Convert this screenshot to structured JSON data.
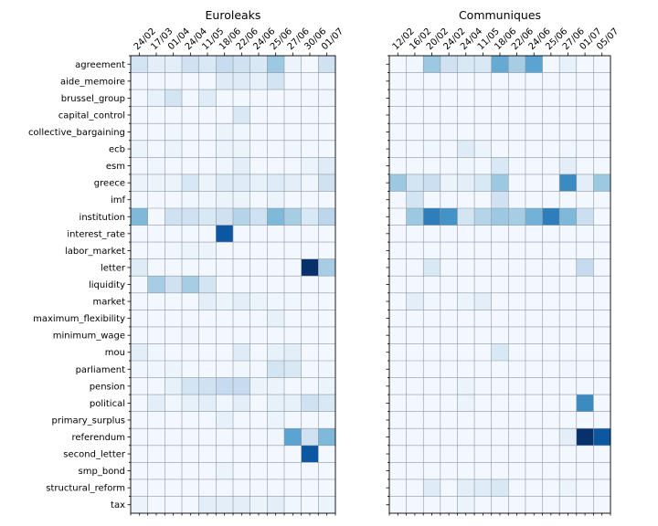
{
  "chart_data": [
    {
      "type": "heatmap",
      "title": "Euroleaks",
      "colormap": "Blues",
      "value_range": [
        0,
        1
      ],
      "x": [
        "24/02",
        "17/03",
        "01/04",
        "24/04",
        "11/05",
        "18/06",
        "22/06",
        "24/06",
        "25/06",
        "27/06",
        "30/06",
        "01/07"
      ],
      "y": [
        "agreement",
        "aide_memoire",
        "brussel_group",
        "capital_control",
        "collective_bargaining",
        "ecb",
        "esm",
        "greece",
        "imf",
        "institution",
        "interest_rate",
        "labor_market",
        "letter",
        "liquidity",
        "market",
        "maximum_flexibility",
        "minimum_wage",
        "mou",
        "parliament",
        "pension",
        "political",
        "primary_surplus",
        "referendum",
        "second_letter",
        "smp_bond",
        "structural_reform",
        "tax"
      ],
      "values": [
        [
          0.18,
          0.1,
          0.1,
          0.2,
          0.15,
          0.24,
          0.2,
          0.15,
          0.38,
          0.06,
          0.02,
          0.2
        ],
        [
          0.02,
          0.02,
          0.03,
          0.02,
          0.02,
          0.12,
          0.12,
          0.08,
          0.18,
          0.02,
          0.02,
          0.02
        ],
        [
          0.02,
          0.08,
          0.18,
          0.02,
          0.12,
          0.02,
          0.02,
          0.02,
          0.02,
          0.02,
          0.02,
          0.04
        ],
        [
          0.02,
          0.02,
          0.02,
          0.02,
          0.02,
          0.02,
          0.15,
          0.02,
          0.02,
          0.02,
          0.02,
          0.02
        ],
        [
          0.02,
          0.02,
          0.04,
          0.02,
          0.02,
          0.06,
          0.04,
          0.02,
          0.02,
          0.02,
          0.02,
          0.02
        ],
        [
          0.06,
          0.02,
          0.06,
          0.02,
          0.02,
          0.06,
          0.06,
          0.02,
          0.02,
          0.04,
          0.02,
          0.02
        ],
        [
          0.02,
          0.04,
          0.02,
          0.02,
          0.02,
          0.04,
          0.1,
          0.02,
          0.02,
          0.02,
          0.06,
          0.12
        ],
        [
          0.06,
          0.06,
          0.06,
          0.16,
          0.06,
          0.12,
          0.12,
          0.08,
          0.12,
          0.1,
          0.04,
          0.2
        ],
        [
          0.02,
          0.02,
          0.02,
          0.04,
          0.04,
          0.06,
          0.06,
          0.02,
          0.06,
          0.02,
          0.02,
          0.02
        ],
        [
          0.45,
          0.02,
          0.2,
          0.2,
          0.15,
          0.2,
          0.3,
          0.2,
          0.45,
          0.35,
          0.15,
          0.28
        ],
        [
          0.02,
          0.02,
          0.02,
          0.02,
          0.02,
          0.85,
          0.02,
          0.02,
          0.02,
          0.02,
          0.02,
          0.02
        ],
        [
          0.02,
          0.02,
          0.04,
          0.06,
          0.06,
          0.02,
          0.02,
          0.02,
          0.02,
          0.02,
          0.02,
          0.02
        ],
        [
          0.12,
          0.02,
          0.02,
          0.02,
          0.02,
          0.02,
          0.02,
          0.02,
          0.02,
          0.02,
          1.0,
          0.35
        ],
        [
          0.02,
          0.35,
          0.2,
          0.35,
          0.18,
          0.02,
          0.02,
          0.02,
          0.02,
          0.02,
          0.02,
          0.02
        ],
        [
          0.02,
          0.02,
          0.02,
          0.02,
          0.1,
          0.06,
          0.1,
          0.06,
          0.04,
          0.04,
          0.02,
          0.02
        ],
        [
          0.02,
          0.02,
          0.02,
          0.02,
          0.02,
          0.02,
          0.02,
          0.02,
          0.08,
          0.02,
          0.02,
          0.02
        ],
        [
          0.02,
          0.02,
          0.02,
          0.04,
          0.02,
          0.02,
          0.02,
          0.02,
          0.02,
          0.02,
          0.02,
          0.02
        ],
        [
          0.1,
          0.04,
          0.02,
          0.02,
          0.02,
          0.02,
          0.12,
          0.02,
          0.08,
          0.1,
          0.02,
          0.02
        ],
        [
          0.04,
          0.04,
          0.06,
          0.02,
          0.02,
          0.02,
          0.04,
          0.02,
          0.18,
          0.15,
          0.02,
          0.04
        ],
        [
          0.02,
          0.02,
          0.08,
          0.18,
          0.2,
          0.25,
          0.25,
          0.06,
          0.06,
          0.02,
          0.02,
          0.06
        ],
        [
          0.02,
          0.1,
          0.04,
          0.08,
          0.1,
          0.04,
          0.1,
          0.02,
          0.08,
          0.08,
          0.2,
          0.15
        ],
        [
          0.02,
          0.02,
          0.02,
          0.02,
          0.02,
          0.08,
          0.02,
          0.02,
          0.06,
          0.02,
          0.02,
          0.02
        ],
        [
          0.02,
          0.02,
          0.02,
          0.02,
          0.02,
          0.02,
          0.02,
          0.02,
          0.04,
          0.55,
          0.2,
          0.45
        ],
        [
          0.02,
          0.02,
          0.02,
          0.02,
          0.02,
          0.02,
          0.02,
          0.02,
          0.02,
          0.02,
          0.85,
          0.02
        ],
        [
          0.02,
          0.02,
          0.02,
          0.02,
          0.02,
          0.06,
          0.02,
          0.02,
          0.02,
          0.02,
          0.02,
          0.02
        ],
        [
          0.02,
          0.02,
          0.02,
          0.02,
          0.02,
          0.02,
          0.02,
          0.02,
          0.02,
          0.02,
          0.02,
          0.02
        ],
        [
          0.06,
          0.02,
          0.02,
          0.02,
          0.1,
          0.1,
          0.1,
          0.06,
          0.1,
          0.04,
          0.02,
          0.06
        ]
      ],
      "grid": true
    },
    {
      "type": "heatmap",
      "title": "Communiques",
      "colormap": "Blues",
      "value_range": [
        0,
        1
      ],
      "x": [
        "12/02",
        "16/02",
        "20/02",
        "24/02",
        "24/04",
        "11/05",
        "18/06",
        "22/06",
        "24/06",
        "25/06",
        "27/06",
        "01/07",
        "05/07"
      ],
      "y": [
        "agreement",
        "aide_memoire",
        "brussel_group",
        "capital_control",
        "collective_bargaining",
        "ecb",
        "esm",
        "greece",
        "imf",
        "institution",
        "interest_rate",
        "labor_market",
        "letter",
        "liquidity",
        "market",
        "maximum_flexibility",
        "minimum_wage",
        "mou",
        "parliament",
        "pension",
        "political",
        "primary_surplus",
        "referendum",
        "second_letter",
        "smp_bond",
        "structural_reform",
        "tax"
      ],
      "values": [
        [
          0.02,
          0.04,
          0.38,
          0.2,
          0.15,
          0.15,
          0.52,
          0.35,
          0.55,
          0.02,
          0.08,
          0.02,
          0.02
        ],
        [
          0.02,
          0.02,
          0.02,
          0.02,
          0.02,
          0.02,
          0.02,
          0.02,
          0.02,
          0.02,
          0.02,
          0.02,
          0.02
        ],
        [
          0.02,
          0.02,
          0.02,
          0.02,
          0.02,
          0.02,
          0.02,
          0.02,
          0.02,
          0.02,
          0.02,
          0.02,
          0.02
        ],
        [
          0.02,
          0.02,
          0.02,
          0.02,
          0.02,
          0.02,
          0.02,
          0.02,
          0.02,
          0.02,
          0.02,
          0.02,
          0.02
        ],
        [
          0.02,
          0.02,
          0.02,
          0.02,
          0.02,
          0.02,
          0.02,
          0.02,
          0.02,
          0.02,
          0.02,
          0.02,
          0.02
        ],
        [
          0.02,
          0.02,
          0.04,
          0.02,
          0.12,
          0.06,
          0.02,
          0.02,
          0.02,
          0.02,
          0.04,
          0.02,
          0.02
        ],
        [
          0.02,
          0.02,
          0.02,
          0.02,
          0.04,
          0.02,
          0.15,
          0.02,
          0.02,
          0.02,
          0.1,
          0.02,
          0.02
        ],
        [
          0.38,
          0.18,
          0.22,
          0.06,
          0.1,
          0.15,
          0.38,
          0.02,
          0.02,
          0.02,
          0.65,
          0.1,
          0.38
        ],
        [
          0.02,
          0.18,
          0.02,
          0.02,
          0.02,
          0.02,
          0.2,
          0.02,
          0.02,
          0.02,
          0.02,
          0.02,
          0.02
        ],
        [
          0.02,
          0.38,
          0.7,
          0.62,
          0.18,
          0.3,
          0.38,
          0.35,
          0.48,
          0.7,
          0.45,
          0.22,
          0.02
        ],
        [
          0.02,
          0.02,
          0.02,
          0.02,
          0.02,
          0.02,
          0.02,
          0.02,
          0.02,
          0.02,
          0.02,
          0.02,
          0.02
        ],
        [
          0.02,
          0.02,
          0.02,
          0.02,
          0.02,
          0.02,
          0.02,
          0.02,
          0.02,
          0.02,
          0.02,
          0.02,
          0.02
        ],
        [
          0.02,
          0.02,
          0.15,
          0.02,
          0.02,
          0.02,
          0.02,
          0.02,
          0.02,
          0.02,
          0.02,
          0.25,
          0.02
        ],
        [
          0.02,
          0.02,
          0.02,
          0.02,
          0.02,
          0.02,
          0.02,
          0.02,
          0.02,
          0.02,
          0.02,
          0.02,
          0.02
        ],
        [
          0.02,
          0.1,
          0.04,
          0.02,
          0.06,
          0.1,
          0.02,
          0.02,
          0.02,
          0.02,
          0.02,
          0.02,
          0.02
        ],
        [
          0.02,
          0.02,
          0.02,
          0.02,
          0.02,
          0.02,
          0.02,
          0.02,
          0.02,
          0.02,
          0.02,
          0.02,
          0.02
        ],
        [
          0.02,
          0.02,
          0.02,
          0.02,
          0.02,
          0.02,
          0.02,
          0.02,
          0.02,
          0.02,
          0.02,
          0.02,
          0.02
        ],
        [
          0.02,
          0.02,
          0.02,
          0.02,
          0.02,
          0.02,
          0.15,
          0.02,
          0.02,
          0.02,
          0.02,
          0.02,
          0.02
        ],
        [
          0.02,
          0.02,
          0.02,
          0.02,
          0.02,
          0.02,
          0.02,
          0.02,
          0.02,
          0.02,
          0.04,
          0.02,
          0.02
        ],
        [
          0.02,
          0.02,
          0.02,
          0.02,
          0.06,
          0.02,
          0.02,
          0.02,
          0.02,
          0.02,
          0.02,
          0.02,
          0.02
        ],
        [
          0.02,
          0.02,
          0.02,
          0.02,
          0.06,
          0.02,
          0.02,
          0.02,
          0.02,
          0.02,
          0.02,
          0.65,
          0.02
        ],
        [
          0.02,
          0.02,
          0.02,
          0.02,
          0.02,
          0.02,
          0.02,
          0.02,
          0.02,
          0.02,
          0.02,
          0.02,
          0.02
        ],
        [
          0.02,
          0.02,
          0.02,
          0.02,
          0.02,
          0.02,
          0.02,
          0.02,
          0.02,
          0.02,
          0.1,
          1.0,
          0.85
        ],
        [
          0.02,
          0.02,
          0.02,
          0.02,
          0.02,
          0.02,
          0.02,
          0.02,
          0.02,
          0.02,
          0.02,
          0.02,
          0.02
        ],
        [
          0.02,
          0.02,
          0.02,
          0.02,
          0.02,
          0.02,
          0.02,
          0.02,
          0.02,
          0.02,
          0.02,
          0.02,
          0.02
        ],
        [
          0.02,
          0.02,
          0.12,
          0.02,
          0.1,
          0.12,
          0.15,
          0.02,
          0.02,
          0.02,
          0.06,
          0.02,
          0.02
        ],
        [
          0.02,
          0.02,
          0.02,
          0.02,
          0.06,
          0.02,
          0.02,
          0.02,
          0.02,
          0.02,
          0.02,
          0.02,
          0.02
        ]
      ],
      "grid": true
    }
  ]
}
